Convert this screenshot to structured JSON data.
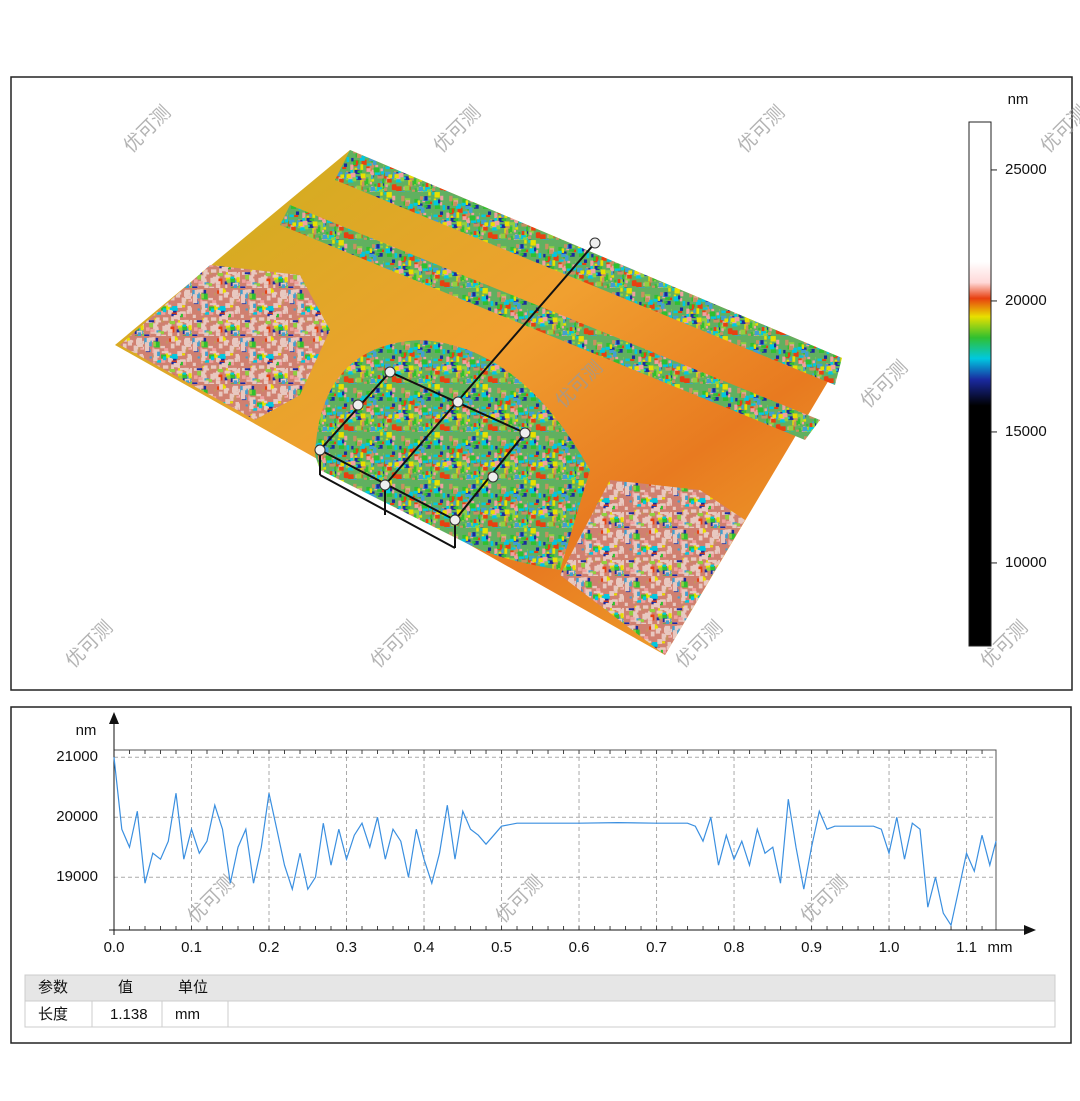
{
  "watermark": "优可测",
  "chart_data": [
    {
      "type": "colorbar",
      "unit": "nm",
      "ylim": [
        6830,
        26830
      ],
      "yticks": [
        10000,
        15000,
        20000,
        25000
      ],
      "colorscale": [
        [
          6830,
          "#000000"
        ],
        [
          16000,
          "#000000"
        ],
        [
          17000,
          "#1a2aa0"
        ],
        [
          17800,
          "#00c8e0"
        ],
        [
          18600,
          "#30c030"
        ],
        [
          19400,
          "#e8e000"
        ],
        [
          20100,
          "#e84010"
        ],
        [
          20700,
          "#ffd8d8"
        ],
        [
          21500,
          "#ffffff"
        ],
        [
          26830,
          "#ffffff"
        ]
      ]
    },
    {
      "type": "line",
      "ylabel": "nm",
      "xlabel": "mm",
      "color": "#3a8fe0",
      "grid": true,
      "xlim": [
        0,
        1.138
      ],
      "ylim": [
        18120,
        21120
      ],
      "xticks": [
        {
          "value": 0,
          "label": "0.0"
        },
        0.1,
        0.2,
        0.3,
        0.4,
        0.5,
        0.6,
        0.7,
        0.8,
        0.9,
        {
          "value": 1,
          "label": "1.0"
        },
        1.1
      ],
      "yticks": [
        19000,
        20000,
        21000
      ],
      "x": [
        0,
        0.01,
        0.02,
        0.03,
        0.04,
        0.05,
        0.06,
        0.07,
        0.08,
        0.09,
        0.1,
        0.11,
        0.12,
        0.13,
        0.14,
        0.15,
        0.16,
        0.17,
        0.18,
        0.19,
        0.2,
        0.21,
        0.22,
        0.23,
        0.24,
        0.25,
        0.26,
        0.27,
        0.28,
        0.29,
        0.3,
        0.31,
        0.32,
        0.33,
        0.34,
        0.35,
        0.36,
        0.37,
        0.38,
        0.39,
        0.4,
        0.41,
        0.42,
        0.43,
        0.44,
        0.45,
        0.46,
        0.47,
        0.48,
        0.49,
        0.5,
        0.52,
        0.55,
        0.6,
        0.65,
        0.7,
        0.74,
        0.75,
        0.76,
        0.77,
        0.78,
        0.79,
        0.8,
        0.81,
        0.82,
        0.83,
        0.84,
        0.85,
        0.86,
        0.87,
        0.88,
        0.89,
        0.9,
        0.91,
        0.92,
        0.93,
        0.95,
        0.98,
        0.99,
        1.0,
        1.01,
        1.02,
        1.03,
        1.04,
        1.05,
        1.06,
        1.07,
        1.08,
        1.09,
        1.1,
        1.11,
        1.12,
        1.13,
        1.138
      ],
      "values": [
        21000,
        19800,
        19500,
        20100,
        18900,
        19400,
        19300,
        19600,
        20400,
        19300,
        19800,
        19400,
        19600,
        20200,
        19800,
        18900,
        19500,
        19800,
        18900,
        19500,
        20400,
        19800,
        19200,
        18800,
        19400,
        18800,
        19000,
        19900,
        19200,
        19800,
        19300,
        19700,
        19900,
        19500,
        20000,
        19300,
        19800,
        19600,
        19000,
        19800,
        19300,
        18900,
        19400,
        20200,
        19300,
        20100,
        19800,
        19700,
        19550,
        19700,
        19850,
        19900,
        19900,
        19900,
        19910,
        19900,
        19900,
        19850,
        19600,
        20000,
        19200,
        19700,
        19300,
        19600,
        19200,
        19800,
        19400,
        19500,
        18900,
        20300,
        19500,
        18800,
        19500,
        20100,
        19800,
        19850,
        19850,
        19850,
        19800,
        19400,
        20000,
        19300,
        19900,
        19800,
        18500,
        19000,
        18400,
        18200,
        18800,
        19400,
        19100,
        19700,
        19200,
        19600
      ]
    }
  ],
  "table": {
    "header": [
      "参数",
      "值",
      "单位"
    ],
    "rows": [
      [
        "长度",
        "1.138",
        "mm"
      ]
    ]
  }
}
